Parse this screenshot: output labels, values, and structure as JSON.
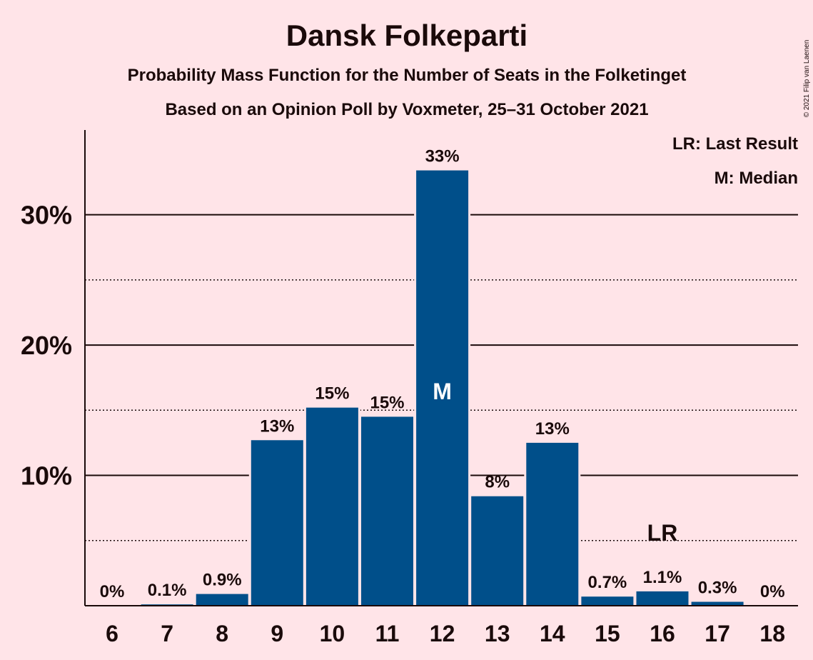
{
  "chart_data": {
    "type": "bar",
    "title": "Dansk Folkeparti",
    "subtitle1": "Probability Mass Function for the Number of Seats in the Folketinget",
    "subtitle2": "Based on an Opinion Poll by Voxmeter, 25–31 October 2021",
    "categories": [
      "6",
      "7",
      "8",
      "9",
      "10",
      "11",
      "12",
      "13",
      "14",
      "15",
      "16",
      "17",
      "18"
    ],
    "values": [
      0,
      0.1,
      0.9,
      12.7,
      15.2,
      14.5,
      33.4,
      8.4,
      12.5,
      0.7,
      1.1,
      0.3,
      0
    ],
    "labels": [
      "0%",
      "0.1%",
      "0.9%",
      "13%",
      "15%",
      "15%",
      "33%",
      "8%",
      "13%",
      "0.7%",
      "1.1%",
      "0.3%",
      "0%"
    ],
    "yticks": [
      {
        "value": 10,
        "label": "10%"
      },
      {
        "value": 20,
        "label": "20%"
      },
      {
        "value": 30,
        "label": "30%"
      }
    ],
    "minor_gridlines": [
      5,
      15,
      25
    ],
    "ylim": [
      0,
      36.5
    ],
    "median_seat": "12",
    "median_marker": "M",
    "last_result_seat": "16",
    "last_result_marker": "LR",
    "legend": [
      "LR: Last Result",
      "M: Median"
    ],
    "bar_color": "#004F8A",
    "background": "#FFE4E8",
    "grid": true
  },
  "copyright": "© 2021 Filip van Laenen"
}
